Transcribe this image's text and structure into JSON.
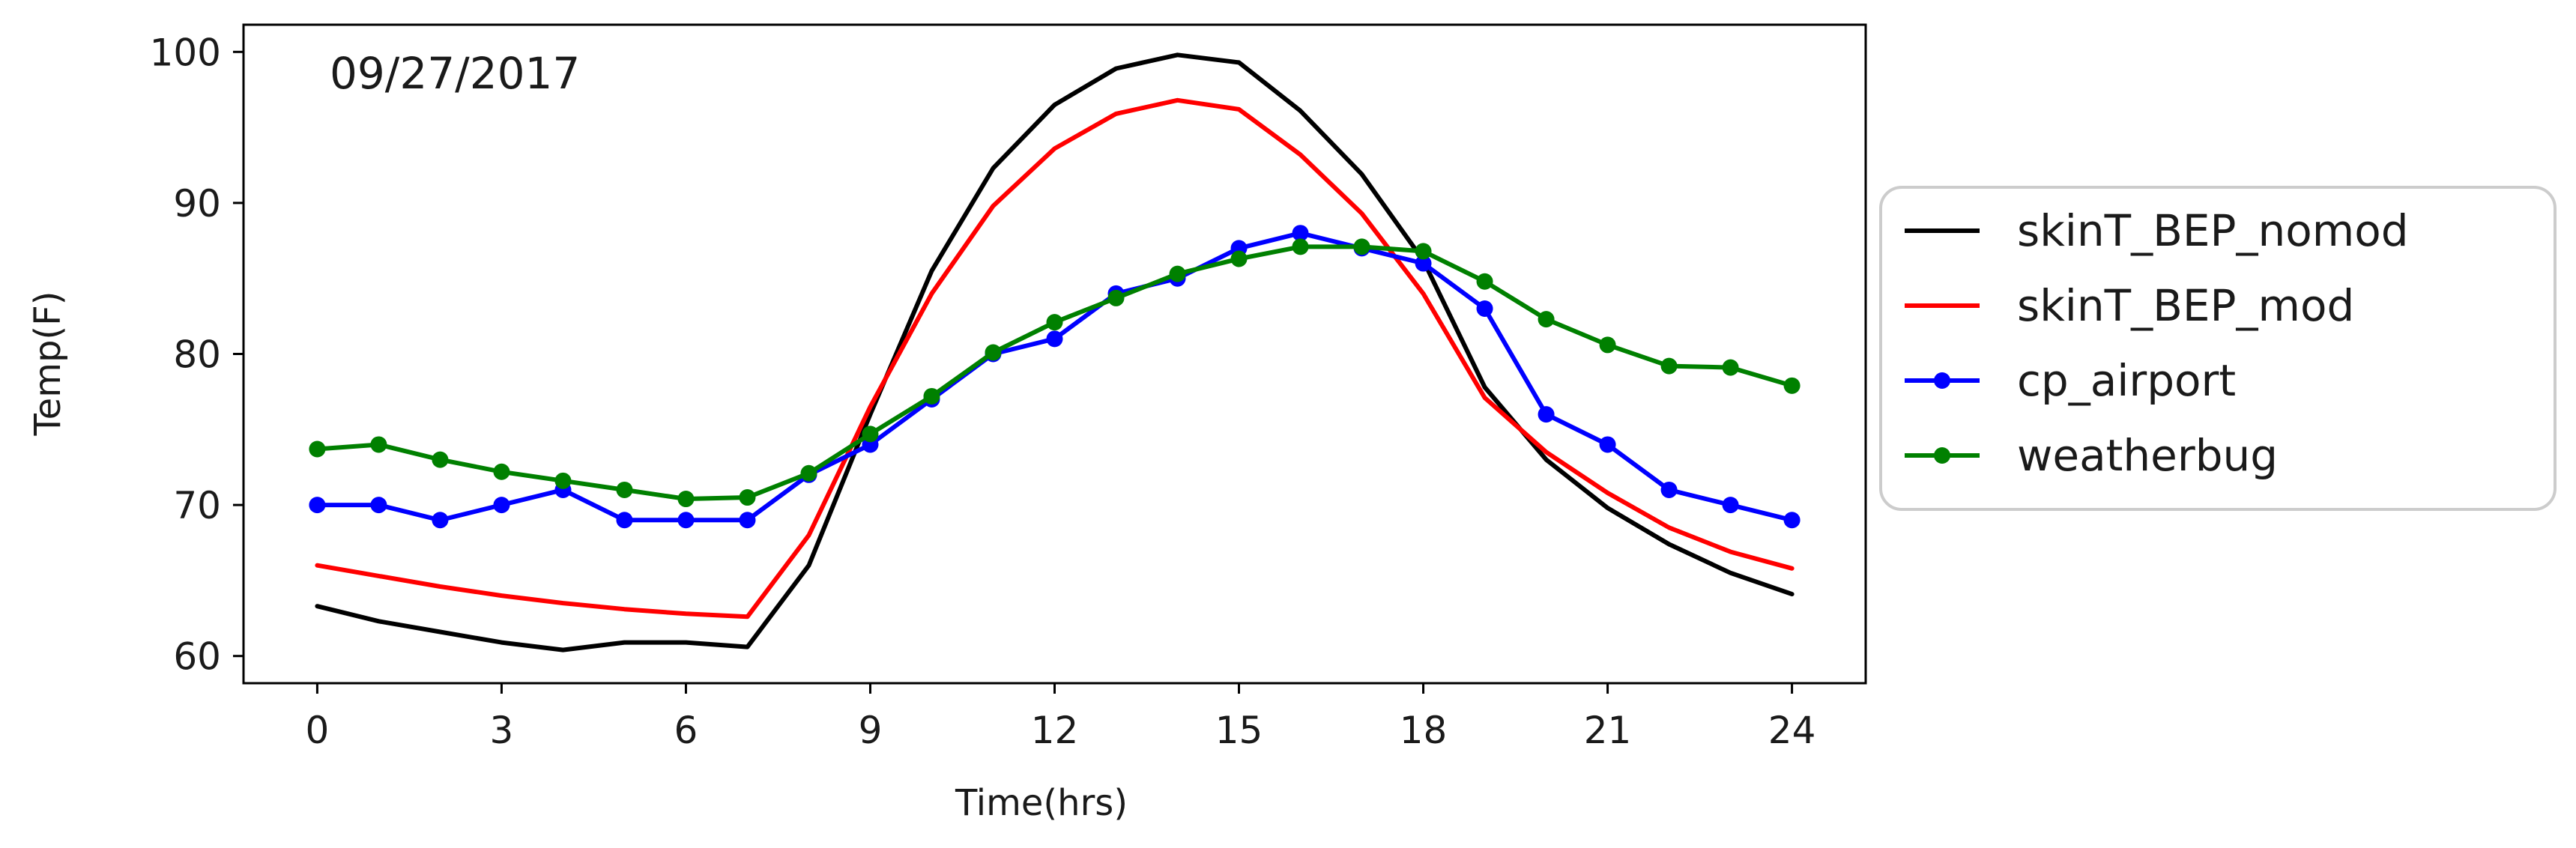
{
  "chart_data": {
    "type": "line",
    "title": "",
    "annotation": "09/27/2017",
    "xlabel": "Time(hrs)",
    "ylabel": "Temp(F)",
    "xlim": [
      -1.2,
      25.2
    ],
    "ylim": [
      58.2,
      101.8
    ],
    "xticks": [
      0,
      3,
      6,
      9,
      12,
      15,
      18,
      21,
      24
    ],
    "yticks": [
      60,
      70,
      80,
      90,
      100
    ],
    "grid": false,
    "legend_position": "right",
    "x": [
      0,
      1,
      2,
      3,
      4,
      5,
      6,
      7,
      8,
      9,
      10,
      11,
      12,
      13,
      14,
      15,
      16,
      17,
      18,
      19,
      20,
      21,
      22,
      23,
      24
    ],
    "series": [
      {
        "name": "skinT_BEP_nomod",
        "color": "#000000",
        "marker": false,
        "values": [
          63.3,
          62.3,
          61.6,
          60.9,
          60.4,
          60.9,
          60.9,
          60.6,
          66.0,
          76.0,
          85.5,
          92.3,
          96.5,
          98.9,
          99.8,
          99.3,
          96.1,
          91.9,
          86.2,
          77.8,
          73.0,
          69.8,
          67.4,
          65.5,
          64.1
        ]
      },
      {
        "name": "skinT_BEP_mod",
        "color": "#ff0000",
        "marker": false,
        "values": [
          66.0,
          65.3,
          64.6,
          64.0,
          63.5,
          63.1,
          62.8,
          62.6,
          68.0,
          76.5,
          84.0,
          89.8,
          93.6,
          95.9,
          96.8,
          96.2,
          93.2,
          89.3,
          84.0,
          77.1,
          73.5,
          70.8,
          68.5,
          66.9,
          65.8
        ]
      },
      {
        "name": "cp_airport",
        "color": "#0000ff",
        "marker": true,
        "values": [
          70,
          70,
          69,
          70,
          71,
          69,
          69,
          69,
          72,
          74,
          77,
          80,
          81,
          84,
          85,
          87,
          88,
          87,
          86,
          83,
          76,
          74,
          71,
          70,
          69
        ]
      },
      {
        "name": "weatherbug",
        "color": "#008000",
        "marker": true,
        "values": [
          73.7,
          74.0,
          73.0,
          72.2,
          71.6,
          71.0,
          70.4,
          70.5,
          72.1,
          74.7,
          77.2,
          80.1,
          82.1,
          83.7,
          85.3,
          86.3,
          87.1,
          87.1,
          86.8,
          84.8,
          82.3,
          80.6,
          79.2,
          79.1,
          77.9
        ]
      }
    ]
  }
}
